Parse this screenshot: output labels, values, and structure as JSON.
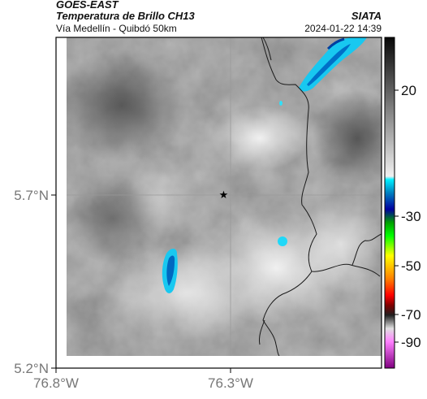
{
  "header": {
    "satellite": "GOES-EAST",
    "product": "Temperatura de Brillo CH13",
    "region": "Vía Medellín - Quibdó 50km",
    "organization": "SIATA",
    "datetime": "2024-01-22 14:39"
  },
  "map": {
    "lat_ticks": [
      {
        "value": 5.7,
        "label": "5.7°N"
      },
      {
        "value": 5.2,
        "label": "5.2°N"
      }
    ],
    "lon_ticks": [
      {
        "value": -76.8,
        "label": "76.8°W"
      },
      {
        "value": -76.3,
        "label": "76.3°W"
      }
    ],
    "marker": {
      "symbol": "star",
      "lon": -76.32,
      "lat": 5.7
    },
    "colors": {
      "frame": "#000000",
      "gridline": "#9a9a9a",
      "border": "#1a1a1a"
    }
  },
  "colorbar": {
    "ticks": [
      {
        "value": 20,
        "label": "20"
      },
      {
        "value": -30,
        "label": "-30"
      },
      {
        "value": -50,
        "label": "-50"
      },
      {
        "value": -70,
        "label": "-70"
      },
      {
        "value": -90,
        "label": "-90"
      }
    ]
  }
}
